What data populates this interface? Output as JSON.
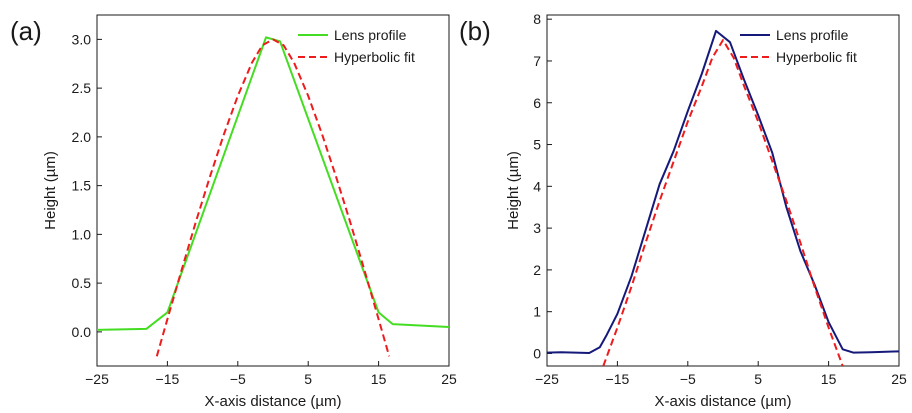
{
  "chart_data": [
    {
      "type": "line",
      "panel_label": "(a)",
      "xlabel": "X-axis distance (µm)",
      "ylabel": "Height (µm)",
      "xlim": [
        -25,
        25
      ],
      "ylim": [
        -0.35,
        3.25
      ],
      "xticks": [
        -25,
        -15,
        -5,
        5,
        15,
        25
      ],
      "xtick_labels": [
        "−25",
        "−15",
        "−5",
        "5",
        "15",
        "25"
      ],
      "yticks": [
        0.0,
        0.5,
        1.0,
        1.5,
        2.0,
        2.5,
        3.0
      ],
      "ytick_labels": [
        "0.0",
        "0.5",
        "1.0",
        "1.5",
        "2.0",
        "2.5",
        "3.0"
      ],
      "grid": false,
      "legend_position": "top-right",
      "series": [
        {
          "name": "Lens profile",
          "color": "#44dd22",
          "dash": "solid",
          "x": [
            -25,
            -18,
            -15,
            -1,
            1,
            15,
            17,
            25
          ],
          "y": [
            0.02,
            0.03,
            0.2,
            3.02,
            2.98,
            0.2,
            0.08,
            0.05
          ]
        },
        {
          "name": "Hyperbolic fit",
          "color": "#ee1c1c",
          "dash": "dashed",
          "x": [
            -16.5,
            -15,
            -13,
            -11,
            -9,
            -7,
            -5,
            -3,
            -1.5,
            0,
            1.5,
            3,
            5,
            7,
            9,
            11,
            13,
            15,
            16.5
          ],
          "y": [
            -0.25,
            0.13,
            0.63,
            1.12,
            1.58,
            2.02,
            2.42,
            2.76,
            2.94,
            3.0,
            2.94,
            2.76,
            2.42,
            2.02,
            1.58,
            1.12,
            0.63,
            0.13,
            -0.25
          ]
        }
      ]
    },
    {
      "type": "line",
      "panel_label": "(b)",
      "xlabel": "X-axis distance (µm)",
      "ylabel": "Height (µm)",
      "xlim": [
        -25,
        25
      ],
      "ylim": [
        -0.3,
        8.1
      ],
      "xticks": [
        -25,
        -15,
        -5,
        5,
        15,
        25
      ],
      "xtick_labels": [
        "−25",
        "−15",
        "−5",
        "5",
        "15",
        "25"
      ],
      "yticks": [
        0,
        1,
        2,
        3,
        4,
        5,
        6,
        7,
        8
      ],
      "ytick_labels": [
        "0",
        "1",
        "2",
        "3",
        "4",
        "5",
        "6",
        "7",
        "8"
      ],
      "grid": false,
      "legend_position": "top-right",
      "series": [
        {
          "name": "Lens profile",
          "color": "#15197a",
          "dash": "solid",
          "x": [
            -25,
            -23,
            -19,
            -17.5,
            -16.5,
            -15,
            -13,
            -11,
            -9,
            -7,
            -5,
            -3,
            -1,
            1,
            3,
            5,
            7,
            9,
            11,
            13,
            15,
            17,
            18.5,
            21,
            25
          ],
          "y": [
            0.02,
            0.03,
            0.01,
            0.15,
            0.45,
            0.95,
            1.85,
            2.95,
            4.05,
            4.85,
            5.8,
            6.7,
            7.72,
            7.45,
            6.55,
            5.7,
            4.8,
            3.5,
            2.45,
            1.65,
            0.75,
            0.1,
            0.02,
            0.03,
            0.05
          ]
        },
        {
          "name": "Hyperbolic fit",
          "color": "#ee1c1c",
          "dash": "dashed",
          "x": [
            -17,
            -15,
            -13,
            -11,
            -9,
            -7,
            -5,
            -3,
            -1.5,
            0,
            1.5,
            3,
            5,
            7,
            9,
            11,
            13,
            15,
            17
          ],
          "y": [
            -0.3,
            0.62,
            1.6,
            2.65,
            3.65,
            4.6,
            5.55,
            6.4,
            7.08,
            7.5,
            7.08,
            6.4,
            5.55,
            4.6,
            3.65,
            2.65,
            1.6,
            0.62,
            -0.3
          ]
        }
      ]
    }
  ]
}
